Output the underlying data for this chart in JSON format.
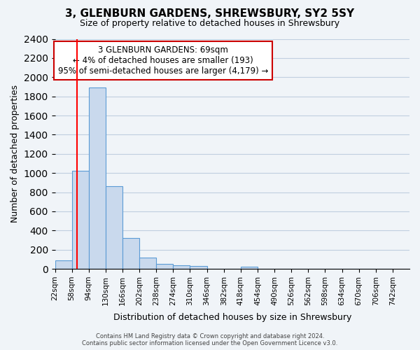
{
  "title": "3, GLENBURN GARDENS, SHREWSBURY, SY2 5SY",
  "subtitle": "Size of property relative to detached houses in Shrewsbury",
  "xlabel": "Distribution of detached houses by size in Shrewsbury",
  "ylabel": "Number of detached properties",
  "bin_labels": [
    "22sqm",
    "58sqm",
    "94sqm",
    "130sqm",
    "166sqm",
    "202sqm",
    "238sqm",
    "274sqm",
    "310sqm",
    "346sqm",
    "382sqm",
    "418sqm",
    "454sqm",
    "490sqm",
    "526sqm",
    "562sqm",
    "598sqm",
    "634sqm",
    "670sqm",
    "706sqm",
    "742sqm"
  ],
  "bin_edges": [
    22,
    58,
    94,
    130,
    166,
    202,
    238,
    274,
    310,
    346,
    382,
    418,
    454,
    490,
    526,
    562,
    598,
    634,
    670,
    706,
    742
  ],
  "bar_heights": [
    90,
    1020,
    1890,
    860,
    320,
    115,
    50,
    40,
    30,
    0,
    0,
    25,
    0,
    0,
    0,
    0,
    0,
    0,
    0,
    0
  ],
  "bar_color": "#c9d9ed",
  "bar_edge_color": "#5b9bd5",
  "grid_color": "#c0cfe0",
  "red_line_x": 69,
  "annotation_text": "3 GLENBURN GARDENS: 69sqm\n← 4% of detached houses are smaller (193)\n95% of semi-detached houses are larger (4,179) →",
  "annotation_box_color": "#ffffff",
  "annotation_box_edge_color": "#cc0000",
  "ylim": [
    0,
    2400
  ],
  "yticks": [
    0,
    200,
    400,
    600,
    800,
    1000,
    1200,
    1400,
    1600,
    1800,
    2000,
    2200,
    2400
  ],
  "footer_line1": "Contains HM Land Registry data © Crown copyright and database right 2024.",
  "footer_line2": "Contains public sector information licensed under the Open Government Licence v3.0.",
  "background_color": "#f0f4f8"
}
